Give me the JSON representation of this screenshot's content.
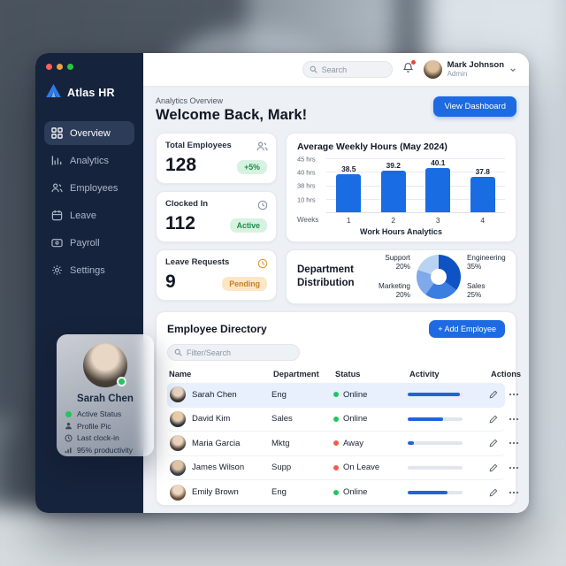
{
  "sidebar": {
    "brand": "Atlas HR",
    "items": [
      {
        "label": "Overview",
        "icon": "grid-icon"
      },
      {
        "label": "Analytics",
        "icon": "bar-chart-icon"
      },
      {
        "label": "Employees",
        "icon": "people-icon"
      },
      {
        "label": "Leave",
        "icon": "calendar-icon"
      },
      {
        "label": "Payroll",
        "icon": "card-icon"
      },
      {
        "label": "Settings",
        "icon": "gear-icon"
      }
    ],
    "profile_card": {
      "name": "Sarah Chen",
      "lines": [
        {
          "icon": "status-dot-icon",
          "text": "Active Status"
        },
        {
          "icon": "person-icon",
          "text": "Profile Pic"
        },
        {
          "icon": "clock-icon",
          "text": "Last clock-in"
        },
        {
          "icon": "bars-icon",
          "text": "95% productivity"
        }
      ]
    }
  },
  "topbar": {
    "search_placeholder": "Search",
    "user": {
      "name": "Mark Johnson",
      "role": "Admin"
    }
  },
  "header": {
    "eyebrow": "Analytics Overview",
    "title": "Welcome Back, Mark!",
    "action": "View Dashboard"
  },
  "stats": [
    {
      "label": "Total Employees",
      "value": "128",
      "badge": "+5%",
      "icon": "people-icon"
    },
    {
      "label": "Clocked In",
      "value": "112",
      "badge": "Active",
      "icon": "clock-icon"
    },
    {
      "label": "Leave Requests",
      "value": "9",
      "badge": "Pending",
      "icon": "pending-clock-icon"
    }
  ],
  "chart_data": [
    {
      "type": "bar",
      "title": "Average Weekly Hours (May 2024)",
      "x_prefix": "Weeks",
      "categories": [
        "1",
        "2",
        "3",
        "4"
      ],
      "values": [
        38.5,
        39.2,
        40.1,
        37.8
      ],
      "ytick_labels": [
        "45 hrs",
        "40 hrs",
        "38 hrs",
        "10 hrs"
      ],
      "xlabel": "Work Hours Analytics",
      "bar_color": "#1a6ce2",
      "value_range": [
        30,
        42
      ],
      "grid": true,
      "legend": "none"
    },
    {
      "type": "pie",
      "title": "Department Distribution",
      "slices": [
        {
          "label": "Engineering",
          "value": 35,
          "pct": "35%",
          "color": "#0d53c4"
        },
        {
          "label": "Sales",
          "value": 25,
          "pct": "25%",
          "color": "#3c7de2"
        },
        {
          "label": "Marketing",
          "value": 20,
          "pct": "20%",
          "color": "#7fa9ea"
        },
        {
          "label": "Support",
          "value": 20,
          "pct": "20%",
          "color": "#b9d4f2"
        }
      ]
    }
  ],
  "directory": {
    "title": "Employee Directory",
    "add_button": "+  Add Employee",
    "filter_placeholder": "Filter/Search",
    "columns": [
      "Name",
      "Department",
      "Status",
      "Activity",
      "Actions"
    ],
    "rows": [
      {
        "name": "Sarah Chen",
        "department": "Eng",
        "status": "Online",
        "status_color": "#22c55e",
        "activity": 95
      },
      {
        "name": "David Kim",
        "department": "Sales",
        "status": "Online",
        "status_color": "#22c55e",
        "activity": 64
      },
      {
        "name": "Maria Garcia",
        "department": "Mktg",
        "status": "Away",
        "status_color": "#e8604c",
        "activity": 12
      },
      {
        "name": "James Wilson",
        "department": "Supp",
        "status": "On Leave",
        "status_color": "#e8604c",
        "activity": 0
      },
      {
        "name": "Emily Brown",
        "department": "Eng",
        "status": "Online",
        "status_color": "#22c55e",
        "activity": 72
      }
    ]
  }
}
